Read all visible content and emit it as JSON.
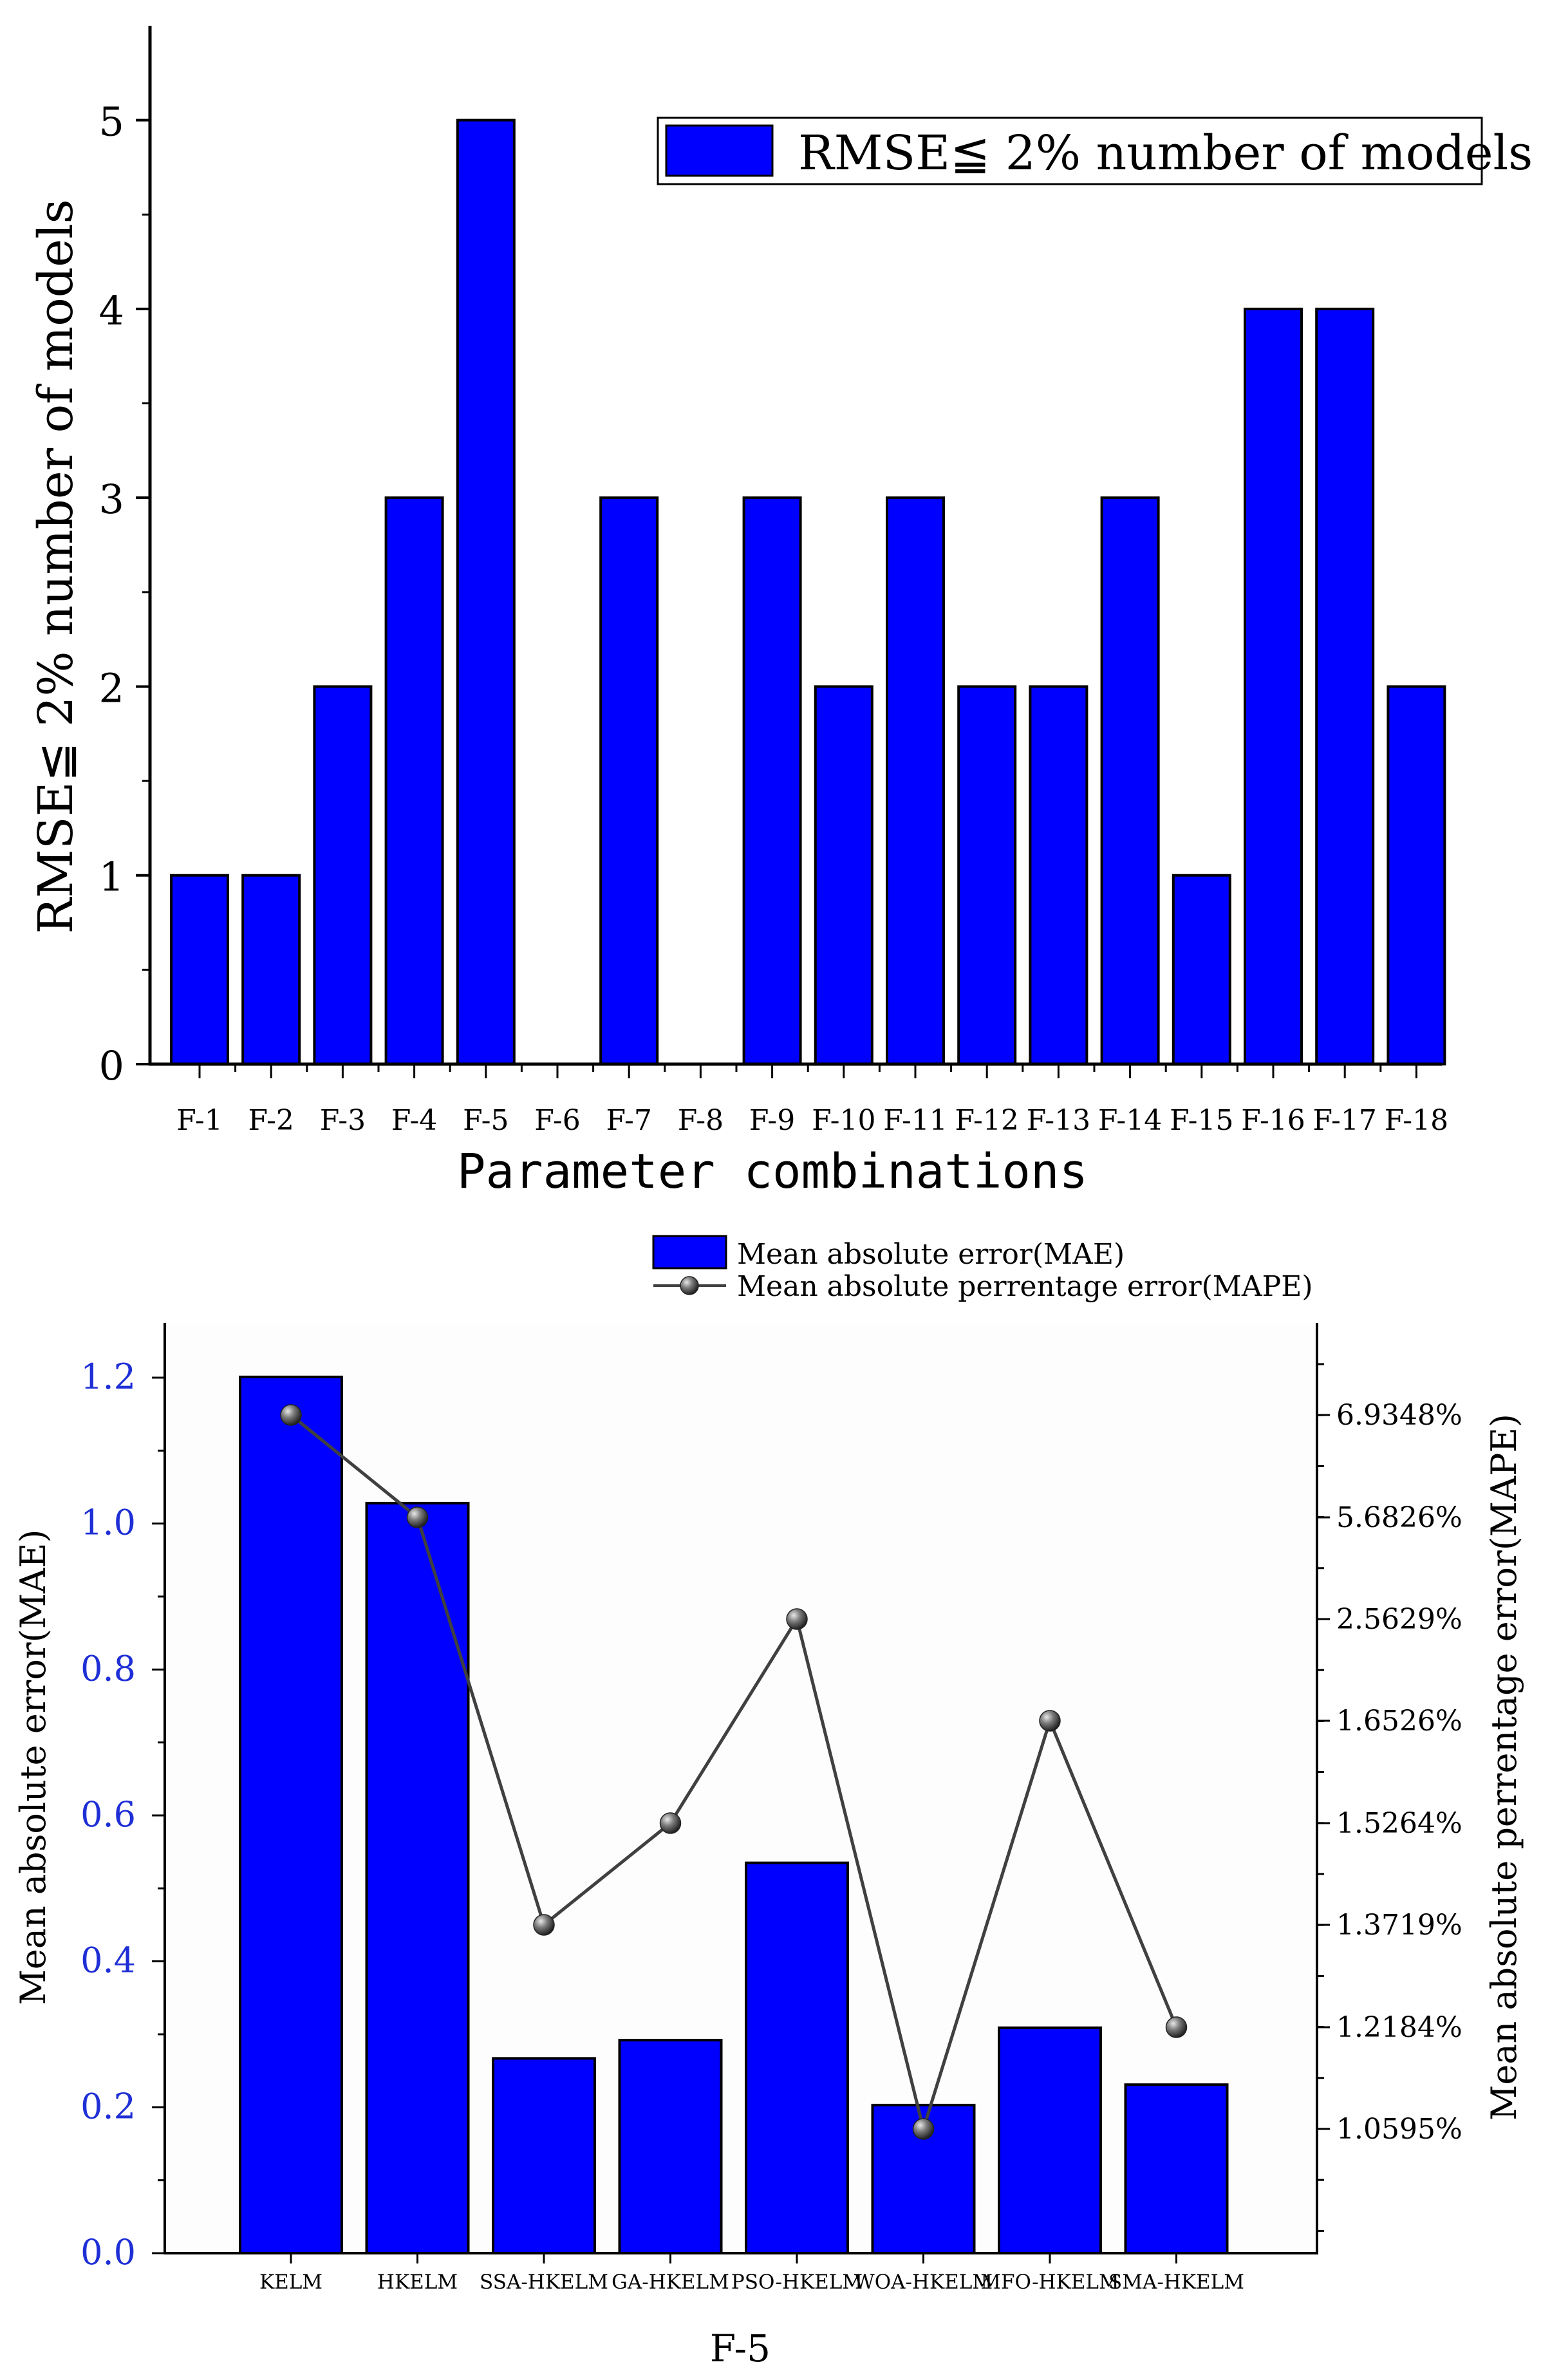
{
  "colors": {
    "bar_fill": "#0000FF",
    "bar_stroke": "#000000",
    "line_color": "#404040",
    "left_tick_color": "#1F2FD6",
    "plot_bg": "#FDFDFD"
  },
  "chart_data": [
    {
      "type": "bar",
      "title": "",
      "xlabel": "Parameter combinations",
      "ylabel": "RMSE≦ 2% number of models",
      "categories": [
        "F-1",
        "F-2",
        "F-3",
        "F-4",
        "F-5",
        "F-6",
        "F-7",
        "F-8",
        "F-9",
        "F-10",
        "F-11",
        "F-12",
        "F-13",
        "F-14",
        "F-15",
        "F-16",
        "F-17",
        "F-18"
      ],
      "values": [
        1,
        1,
        2,
        3,
        5,
        0,
        3,
        0,
        3,
        2,
        3,
        2,
        2,
        3,
        1,
        4,
        4,
        2
      ],
      "ylim": [
        0,
        5.5
      ],
      "yticks": [
        "0",
        "1",
        "2",
        "3",
        "4",
        "5"
      ],
      "legend": {
        "position": "top-right",
        "entries": [
          "RMSE≦ 2% number of models"
        ]
      }
    },
    {
      "type": "bar+line",
      "title": "",
      "xlabel": "F-5",
      "ylabel_left": "Mean absolute error(MAE)",
      "ylabel_right": "Mean absolute perrentage error(MAPE)",
      "categories": [
        "KELM",
        "HKELM",
        "SSA-HKELM",
        "GA-HKELM",
        "PSO-HKELM",
        "WOA-HKELM",
        "MFO-HKELM",
        "SMA-HKELM"
      ],
      "ylim_left": [
        0,
        1.3
      ],
      "yticks_left": [
        "0.0",
        "0.2",
        "0.4",
        "0.6",
        "0.8",
        "1.0",
        "1.2"
      ],
      "yticks_right": [
        "1.0595%",
        "1.2184%",
        "1.3719%",
        "1.5264%",
        "1.6526%",
        "2.5629%",
        "5.6826%",
        "6.9348%"
      ],
      "series": [
        {
          "name": "Mean absolute error(MAE)",
          "kind": "bar",
          "axis": "left",
          "values": [
            1.201,
            1.028,
            0.267,
            0.292,
            0.535,
            0.203,
            0.309,
            0.231
          ]
        },
        {
          "name": "Mean absolute perrentage error(MAPE)",
          "kind": "line",
          "axis": "right",
          "values": [
            6.9348,
            5.6826,
            1.3719,
            1.5264,
            2.5629,
            1.0595,
            1.6526,
            1.2184
          ]
        }
      ],
      "legend": {
        "position": "top",
        "entries": [
          "Mean absolute error(MAE)",
          "Mean absolute perrentage error(MAPE)"
        ]
      }
    }
  ]
}
